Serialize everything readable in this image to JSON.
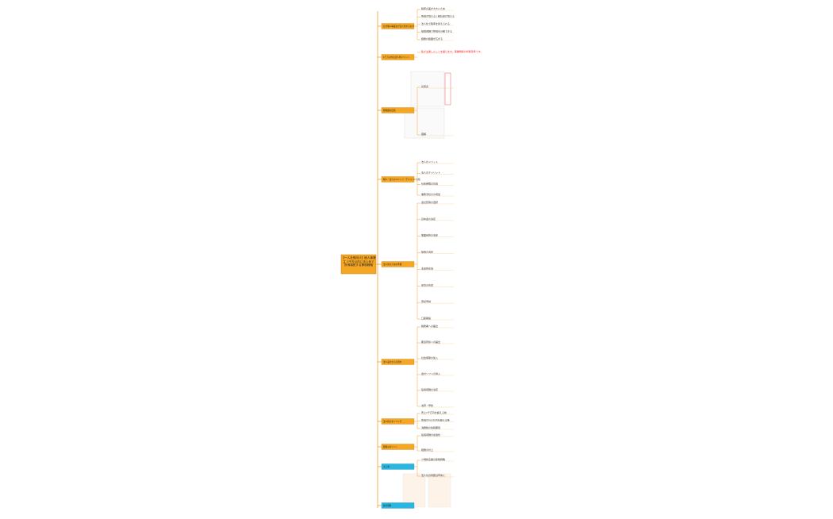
{
  "title": "【一人社長向け】個人事業主 1千万以内に法人化で 所得減税する節税戦略",
  "branches": [
    {
      "label": "なぜ個人事業主が法人化するのか",
      "children": [
        "税率の差が大きいため",
        "所得が増えると税負担が増える",
        "法人化で税率を抑えられる",
        "役員報酬で所得を分散できる",
        "経費の範囲が広がる"
      ]
    },
    {
      "label": "1千万以内の法人化メリット",
      "children": [
        "私が主催したことを語ります。事業規模の判断基準です。"
      ]
    },
    {
      "label": "節税額の比較",
      "children": [
        "比較表",
        "図解"
      ]
    },
    {
      "label": "個人・法人のメリット・デメリット比較",
      "children": [
        "法人のメリット",
        "法人のデメリット",
        "社会保険の負担",
        "事務手続きの増加"
      ]
    },
    {
      "label": "法人化のための準備",
      "children": [
        "会社形態の選択",
        "資本金の決定",
        "事業目的の決定",
        "役員の決定",
        "本店所在地",
        "定款の作成",
        "登記申請",
        "口座開設"
      ]
    },
    {
      "label": "法人設立からの流れ",
      "children": [
        "税務署への届出",
        "都道府県への届出",
        "社会保険の加入",
        "会計ソフトの導入",
        "役員報酬の決定",
        "決算・申告"
      ]
    },
    {
      "label": "法人化のタイミング",
      "children": [
        "売上1千万円を超える前",
        "所得が800万円を超える時",
        "消費税の免税期間"
      ]
    },
    {
      "label": "節税のポイント",
      "children": [
        "役員報酬の最適化",
        "経費の計上"
      ]
    },
    {
      "label": "まとめ",
      "children": [
        "小規模企業の節税戦略",
        "法人化の判断は早めに"
      ]
    },
    {
      "label": "参考資料",
      "children": []
    }
  ]
}
